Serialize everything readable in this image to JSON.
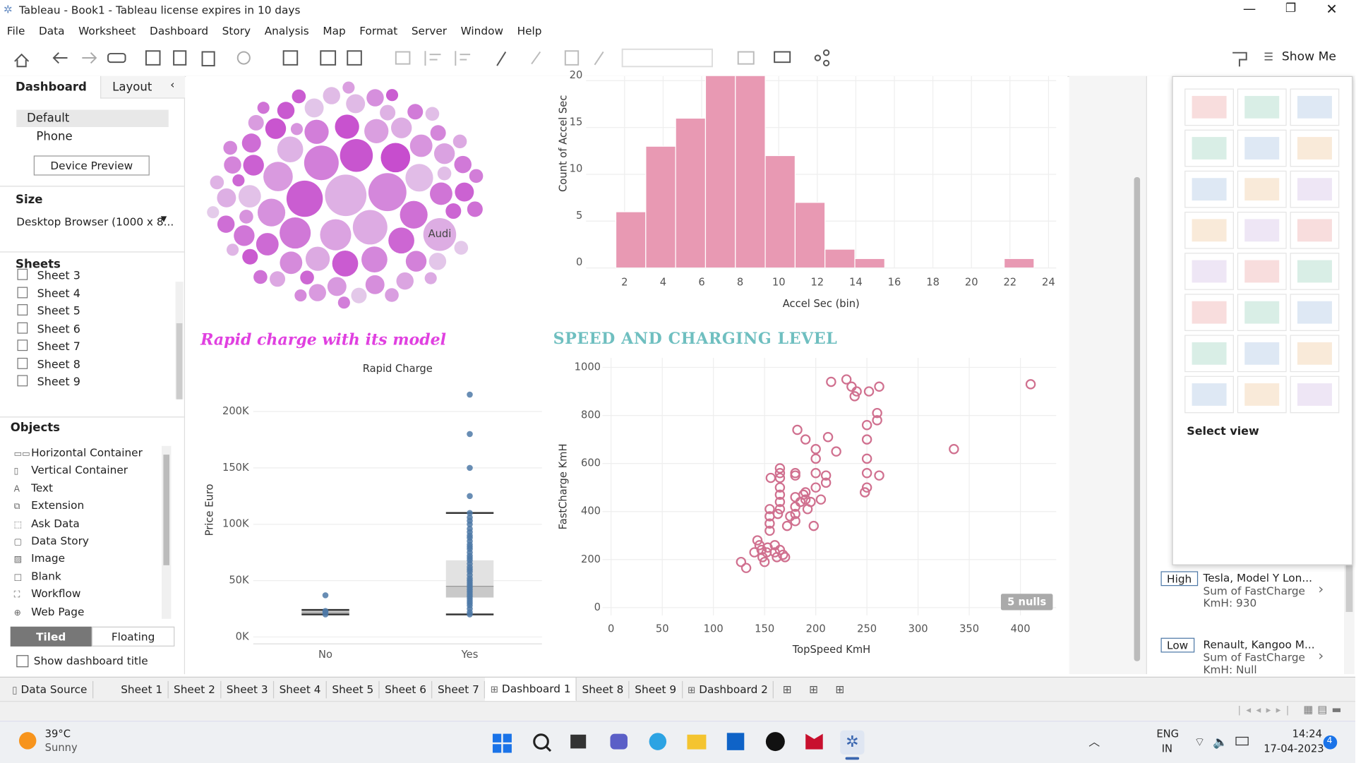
{
  "window": {
    "title": "Tableau - Book1 - Tableau license expires in 10 days"
  },
  "menu": [
    "File",
    "Data",
    "Worksheet",
    "Dashboard",
    "Story",
    "Analysis",
    "Map",
    "Format",
    "Server",
    "Window",
    "Help"
  ],
  "toolbar": {
    "show_me": "Show Me"
  },
  "left_panel": {
    "tabs": [
      "Dashboard",
      "Layout"
    ],
    "devices": [
      "Default",
      "Phone"
    ],
    "device_preview": "Device Preview",
    "size_heading": "Size",
    "size_value": "Desktop Browser (1000 x 8...",
    "sheets_heading": "Sheets",
    "sheets": [
      "Sheet 3",
      "Sheet 4",
      "Sheet 5",
      "Sheet 6",
      "Sheet 7",
      "Sheet 8",
      "Sheet 9"
    ],
    "objects_heading": "Objects",
    "objects": [
      "Horizontal Container",
      "Vertical Container",
      "Text",
      "Extension",
      "Ask Data",
      "Data Story",
      "Image",
      "Blank",
      "Workflow",
      "Web Page"
    ],
    "layout_modes": [
      "Tiled",
      "Floating"
    ],
    "show_title": "Show dashboard title"
  },
  "dashboard": {
    "title_left": "Rapid charge with its model",
    "title_right": "SPEED AND CHARGING LEVEL",
    "nulls_badge": "5 nulls"
  },
  "right_panel": {
    "select_view": "Select view",
    "items": [
      {
        "tag": "High",
        "name": "Tesla, Model Y Lon...",
        "line1": "Sum of FastCharge",
        "line2": "KmH: 930"
      },
      {
        "tag": "Low",
        "name": "Renault, Kangoo M...",
        "line1": "Sum of FastCharge",
        "line2": "KmH: Null"
      }
    ]
  },
  "tabs": [
    "Data Source",
    "Sheet 1",
    "Sheet 2",
    "Sheet 3",
    "Sheet 4",
    "Sheet 5",
    "Sheet 6",
    "Sheet 7",
    "Dashboard 1",
    "Sheet 8",
    "Sheet 9",
    "Dashboard 2"
  ],
  "taskbar": {
    "temp": "39°C",
    "weather": "Sunny",
    "lang1": "ENG",
    "lang2": "IN",
    "time": "14:24",
    "date": "17-04-2023",
    "badge": "4"
  },
  "chart_data": [
    {
      "type": "bubble",
      "categories": [
        null,
        null,
        null,
        null,
        null,
        null,
        null,
        null,
        null,
        null,
        null,
        null,
        null,
        null,
        null,
        null,
        null,
        null,
        null,
        null,
        null,
        null,
        null,
        null,
        null,
        "Audi",
        null,
        null,
        null,
        null,
        null,
        null,
        null,
        null,
        null,
        null,
        null,
        null,
        null,
        null,
        null,
        null,
        null,
        null,
        null,
        null,
        null,
        null,
        null,
        null,
        null,
        null,
        null,
        null,
        null,
        null,
        null,
        null,
        null,
        null,
        null,
        null,
        null,
        null,
        null,
        null,
        null,
        null,
        null,
        null,
        null,
        null,
        null,
        null,
        null,
        null,
        null,
        null,
        null,
        null
      ],
      "values": [
        24,
        22,
        21,
        20,
        20,
        19,
        18,
        18,
        17,
        17,
        16,
        16,
        16,
        15,
        15,
        15,
        15,
        14,
        14,
        14,
        14,
        13,
        13,
        13,
        13,
        19,
        13,
        12,
        12,
        12,
        12,
        12,
        12,
        11,
        11,
        11,
        11,
        11,
        11,
        11,
        10,
        10,
        10,
        10,
        10,
        10,
        10,
        10,
        10,
        9,
        9,
        9,
        9,
        9,
        9,
        9,
        9,
        9,
        8,
        8,
        8,
        8,
        8,
        8,
        8,
        8,
        8,
        8,
        8,
        8,
        7,
        7,
        7,
        7,
        7,
        7,
        7,
        7,
        7,
        7
      ],
      "colors": [
        "#e4cbea",
        "#c442cb"
      ]
    },
    {
      "type": "histogram",
      "bins": [
        1.55,
        3.1,
        4.65,
        6.2,
        7.75,
        9.3,
        10.85,
        12.4,
        13.95,
        15.5,
        17.05,
        18.6,
        20.15,
        21.7,
        23.25
      ],
      "values": [
        6,
        13,
        16,
        21,
        21,
        12,
        7,
        2,
        1,
        0,
        0,
        0,
        0,
        1
      ],
      "color": "#e899b3",
      "xlabel": "Accel Sec (bin)",
      "ylabel": "Count of Accel Sec",
      "xlim": [
        0,
        24.4
      ],
      "ylim": [
        0,
        20.5
      ],
      "xticks": [
        2,
        4,
        6,
        8,
        10,
        12,
        14,
        16,
        18,
        20,
        22,
        24
      ],
      "yticks": [
        0,
        5,
        10,
        15,
        20
      ],
      "grid": true
    },
    {
      "type": "boxplot",
      "header": "Rapid Charge",
      "categories": [
        "No",
        "Yes"
      ],
      "ylabel": "Price Euro",
      "min": [
        20000,
        20000
      ],
      "q1": [
        20000,
        35000
      ],
      "median": [
        22000,
        45000
      ],
      "q3": [
        23500,
        68000
      ],
      "max": [
        24000,
        110000
      ],
      "points": [
        [
          20000,
          22000,
          23000,
          37000
        ],
        [
          20000,
          22000,
          25000,
          28000,
          30000,
          32000,
          34000,
          36000,
          38000,
          40000,
          42000,
          44000,
          46000,
          48000,
          50000,
          52000,
          55000,
          58000,
          60000,
          62000,
          65000,
          68000,
          70000,
          72000,
          75000,
          78000,
          80000,
          82000,
          85000,
          88000,
          90000,
          93000,
          96000,
          100000,
          103000,
          106000,
          110000,
          125000,
          150000,
          180000,
          215000
        ]
      ],
      "color": "#4e79a7",
      "ylim": [
        0,
        230000
      ],
      "yticks": [
        {
          "value": 0,
          "label": "0K"
        },
        {
          "value": 50000,
          "label": "50K"
        },
        {
          "value": 100000,
          "label": "100K"
        },
        {
          "value": 150000,
          "label": "150K"
        },
        {
          "value": 200000,
          "label": "200K"
        }
      ],
      "grid": true
    },
    {
      "type": "scatter",
      "xlabel": "TopSpeed KmH",
      "ylabel": "FastCharge KmH",
      "x": [
        127,
        132,
        140,
        143,
        145,
        147,
        148,
        150,
        152,
        153,
        155,
        155,
        155,
        155,
        156,
        160,
        160,
        162,
        163,
        165,
        165,
        165,
        165,
        165,
        165,
        165,
        165,
        168,
        170,
        172,
        175,
        180,
        180,
        180,
        180,
        180,
        180,
        182,
        185,
        188,
        190,
        190,
        190,
        192,
        195,
        198,
        200,
        200,
        200,
        200,
        205,
        210,
        210,
        212,
        215,
        220,
        230,
        235,
        238,
        240,
        248,
        250,
        250,
        250,
        250,
        250,
        252,
        260,
        260,
        262,
        262,
        335,
        410
      ],
      "y": [
        190,
        165,
        230,
        280,
        260,
        240,
        210,
        190,
        230,
        250,
        320,
        350,
        380,
        410,
        540,
        230,
        260,
        210,
        390,
        410,
        440,
        470,
        500,
        540,
        560,
        580,
        240,
        220,
        210,
        340,
        380,
        360,
        390,
        420,
        460,
        550,
        560,
        740,
        440,
        470,
        450,
        480,
        700,
        410,
        440,
        340,
        500,
        560,
        620,
        660,
        450,
        520,
        550,
        710,
        940,
        650,
        950,
        920,
        880,
        900,
        480,
        500,
        560,
        620,
        700,
        760,
        900,
        780,
        810,
        550,
        920,
        660,
        930
      ],
      "color": "#d0708f",
      "xlim": [
        0,
        435
      ],
      "ylim": [
        0,
        1040
      ],
      "xticks": [
        0,
        50,
        100,
        150,
        200,
        250,
        300,
        350,
        400
      ],
      "yticks": [
        0,
        200,
        400,
        600,
        800,
        1000
      ],
      "grid": true
    }
  ]
}
